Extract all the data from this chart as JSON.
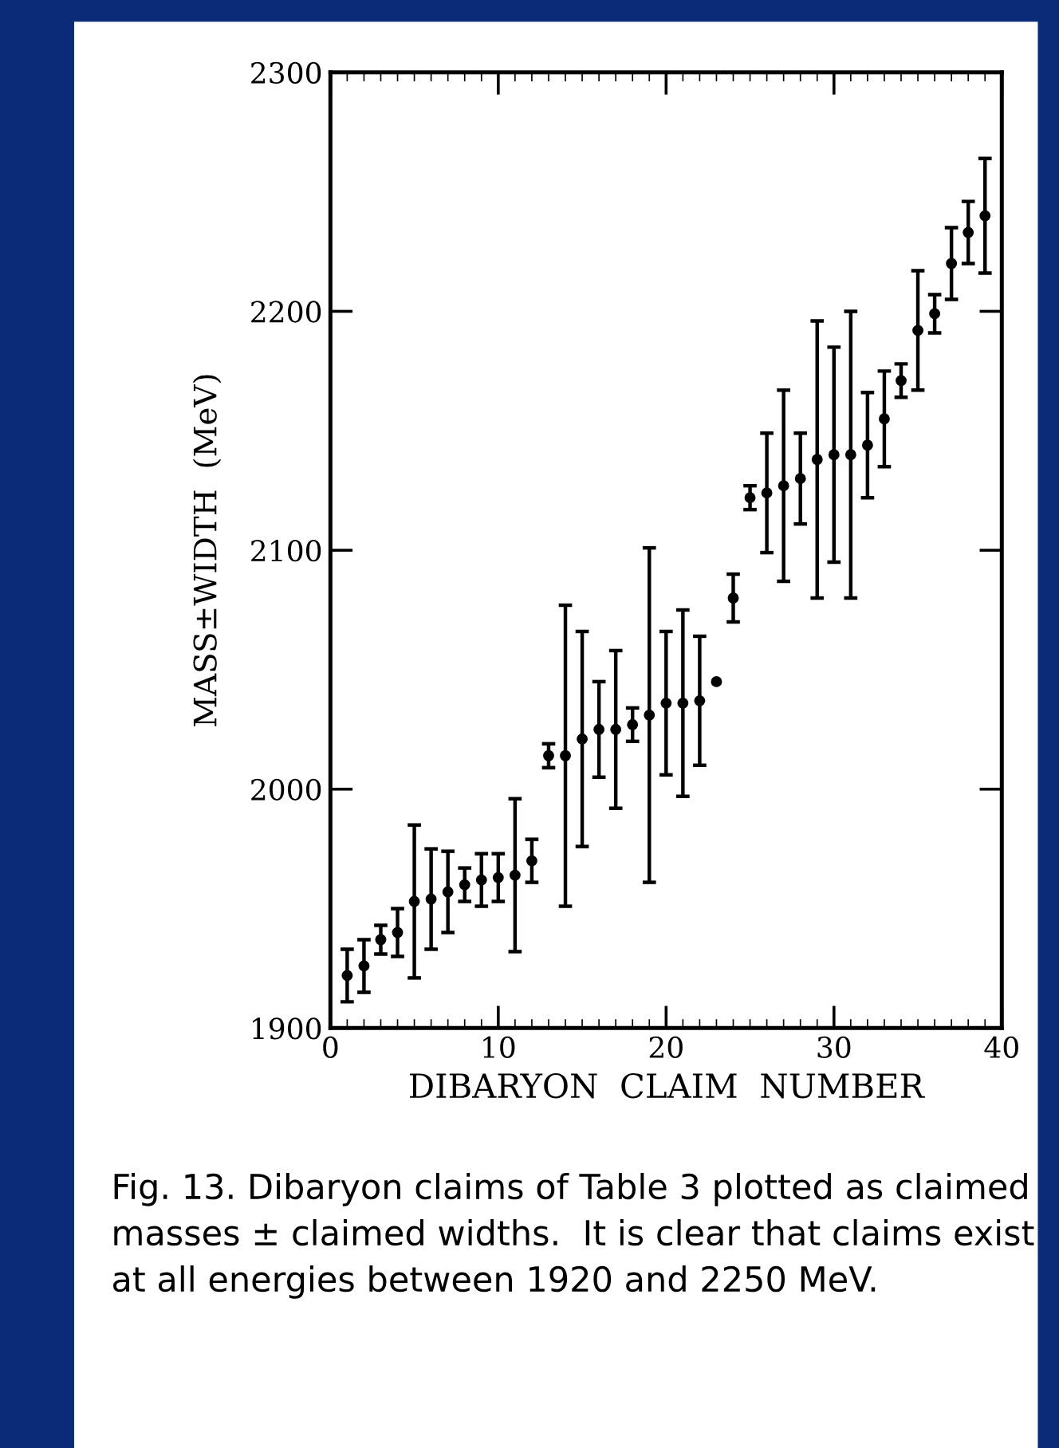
{
  "chart_data": {
    "type": "scatter",
    "xlabel": "DIBARYON  CLAIM  NUMBER",
    "ylabel": "MASS±WIDTH  (MeV)",
    "x": [
      1,
      2,
      3,
      4,
      5,
      6,
      7,
      8,
      9,
      10,
      11,
      12,
      13,
      14,
      15,
      16,
      17,
      18,
      19,
      20,
      21,
      22,
      23,
      24,
      25,
      26,
      27,
      28,
      29,
      30,
      31,
      32,
      33,
      34,
      35,
      36,
      37,
      38,
      39
    ],
    "values": [
      1922,
      1926,
      1937,
      1940,
      1953,
      1954,
      1957,
      1960,
      1962,
      1963,
      1964,
      1970,
      2014,
      2014,
      2021,
      2025,
      2025,
      2027,
      2031,
      2036,
      2036,
      2037,
      2045,
      2080,
      2122,
      2124,
      2127,
      2130,
      2138,
      2140,
      2140,
      2144,
      2155,
      2171,
      2192,
      2199,
      2220,
      2233,
      2240
    ],
    "errors": [
      11,
      11,
      6,
      10,
      32,
      21,
      17,
      7,
      11,
      10,
      32,
      9,
      5,
      63,
      45,
      20,
      33,
      7,
      70,
      30,
      39,
      27,
      null,
      10,
      5,
      25,
      40,
      19,
      58,
      45,
      60,
      22,
      20,
      7,
      25,
      8,
      15,
      13,
      24
    ],
    "color": "#000000",
    "marker": "circle",
    "xlim": [
      0,
      40
    ],
    "xticks": [
      0,
      10,
      20,
      30,
      40
    ],
    "ylim": [
      1900,
      2300
    ],
    "yticks": [
      1900,
      2000,
      2100,
      2200,
      2300
    ],
    "grid": false,
    "annotations": [
      "Fig. 13. Dibaryon claims of Table 3 plotted as claimed masses ± claimed widths.  It is clear that claims exist at all energies between 1920 and 2250 MeV."
    ]
  }
}
